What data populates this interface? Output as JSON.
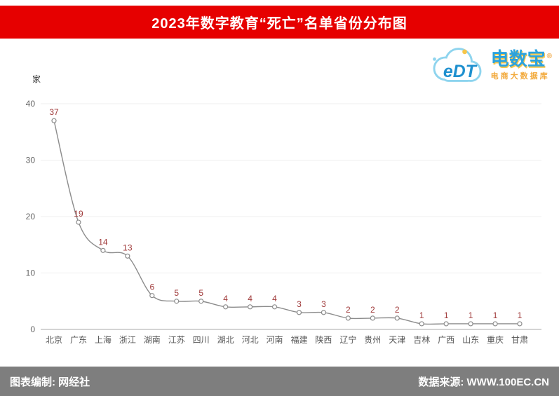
{
  "header": {
    "title": "2023年数字教育“死亡”名单省份分布图",
    "bg_color": "#e60000"
  },
  "logo": {
    "brand": "电数宝",
    "reg": "®",
    "sub": "电商大数据库",
    "cloud_text": "eDT",
    "brand_color": "#2aa2de",
    "accent_color": "#f7c64a"
  },
  "chart_data": {
    "type": "line",
    "unit_label": "家",
    "categories": [
      "北京",
      "广东",
      "上海",
      "浙江",
      "湖南",
      "江苏",
      "四川",
      "湖北",
      "河北",
      "河南",
      "福建",
      "陕西",
      "辽宁",
      "贵州",
      "天津",
      "吉林",
      "广西",
      "山东",
      "重庆",
      "甘肃"
    ],
    "values": [
      37,
      19,
      14,
      13,
      6,
      5,
      5,
      4,
      4,
      4,
      3,
      3,
      2,
      2,
      2,
      1,
      1,
      1,
      1,
      1
    ],
    "ylim": [
      0,
      40
    ],
    "yticks": [
      0,
      10,
      20,
      30,
      40
    ],
    "grid": true,
    "legend": "none",
    "line_color": "#8c8c8c",
    "marker": "circle",
    "marker_fill": "#ffffff",
    "label_color": "#a03b3b"
  },
  "footer": {
    "left": "图表编制: 网经社",
    "right": "数据来源: WWW.100EC.CN"
  }
}
